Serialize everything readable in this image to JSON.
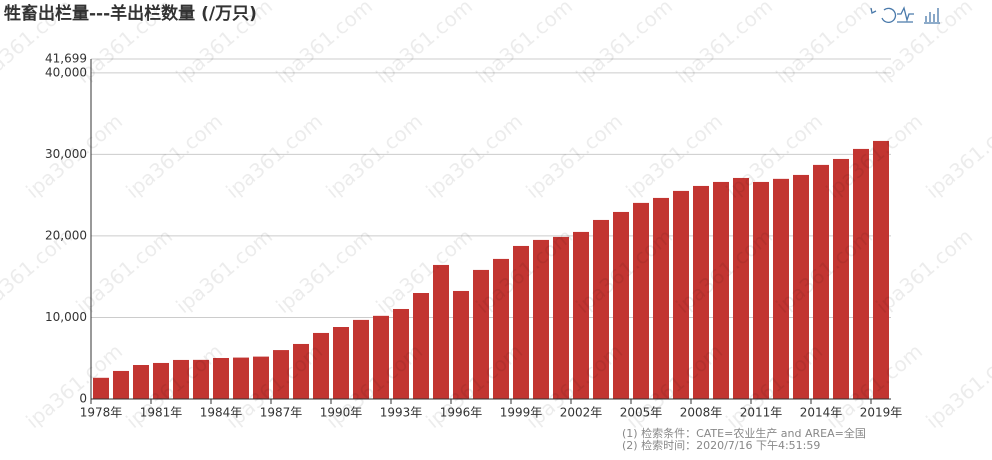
{
  "chart_data": {
    "type": "bar",
    "title": "牲畜出栏量---羊出栏数量 (/万只)",
    "watermark": "ipa361.com",
    "notes": [
      "(1) 检索条件：CATE=农业生产 and AREA=全国",
      "(2) 检索时间：2020/7/16 下午4:51:59"
    ],
    "color": "#c23531",
    "grid": true,
    "ylim": [
      0,
      41699
    ],
    "yticks": [
      0,
      {
        "value": 10000,
        "label": "10,000"
      },
      {
        "value": 20000,
        "label": "20,000"
      },
      {
        "value": 30000,
        "label": "30,000"
      },
      {
        "value": 40000,
        "label": "40,000"
      },
      {
        "value": 41699,
        "label": "41,699"
      }
    ],
    "categories": [
      "1978年",
      null,
      null,
      "1981年",
      null,
      null,
      "1984年",
      null,
      null,
      "1987年",
      null,
      null,
      "1990年",
      null,
      null,
      "1993年",
      null,
      null,
      "1996年",
      null,
      null,
      "1999年",
      null,
      null,
      "2002年",
      null,
      null,
      "2005年",
      null,
      null,
      "2008年",
      null,
      null,
      "2011年",
      null,
      null,
      "2014年",
      null,
      null,
      "2019年"
    ],
    "values": [
      2600,
      3440,
      4170,
      4420,
      4790,
      4800,
      5030,
      5080,
      5200,
      6000,
      6750,
      8100,
      8830,
      9700,
      10200,
      11040,
      13000,
      16440,
      13250,
      15830,
      17180,
      18770,
      19510,
      19880,
      20490,
      21960,
      22940,
      24050,
      24660,
      25520,
      26130,
      26620,
      27110,
      26620,
      27000,
      27480,
      28710,
      29440,
      30670,
      31650
    ]
  }
}
